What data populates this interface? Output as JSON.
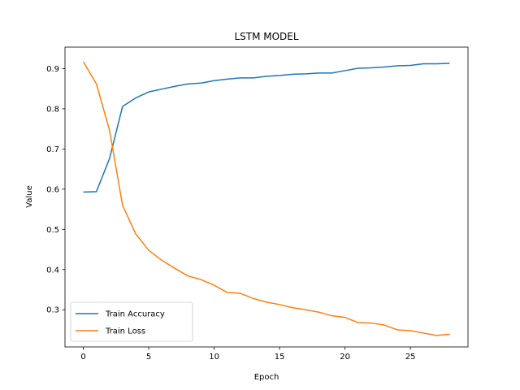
{
  "chart_data": {
    "type": "line",
    "title": "LSTM MODEL",
    "xlabel": "Epoch",
    "ylabel": "Value",
    "xlim": [
      -1.4,
      29.4
    ],
    "ylim": [
      0.2075,
      0.9535
    ],
    "xticks": [
      0,
      5,
      10,
      15,
      20,
      25
    ],
    "yticks": [
      0.3,
      0.4,
      0.5,
      0.6,
      0.7,
      0.8,
      0.9
    ],
    "grid": false,
    "legend_position": "lower-left",
    "x": [
      0,
      1,
      2,
      3,
      4,
      5,
      6,
      7,
      8,
      9,
      10,
      11,
      12,
      13,
      14,
      15,
      16,
      17,
      18,
      19,
      20,
      21,
      22,
      23,
      24,
      25,
      26,
      27,
      28
    ],
    "series": [
      {
        "name": "Train Accuracy",
        "color": "#1f77b4",
        "values": [
          0.593,
          0.594,
          0.676,
          0.806,
          0.827,
          0.842,
          0.849,
          0.856,
          0.862,
          0.864,
          0.87,
          0.874,
          0.877,
          0.877,
          0.881,
          0.883,
          0.886,
          0.887,
          0.889,
          0.889,
          0.895,
          0.901,
          0.902,
          0.904,
          0.907,
          0.908,
          0.912,
          0.912,
          0.913
        ]
      },
      {
        "name": "Train Loss",
        "color": "#ff7f0e",
        "values": [
          0.917,
          0.862,
          0.747,
          0.56,
          0.489,
          0.448,
          0.423,
          0.403,
          0.384,
          0.375,
          0.361,
          0.343,
          0.341,
          0.328,
          0.319,
          0.313,
          0.305,
          0.3,
          0.294,
          0.285,
          0.281,
          0.268,
          0.267,
          0.262,
          0.25,
          0.248,
          0.242,
          0.236,
          0.239
        ]
      }
    ]
  }
}
